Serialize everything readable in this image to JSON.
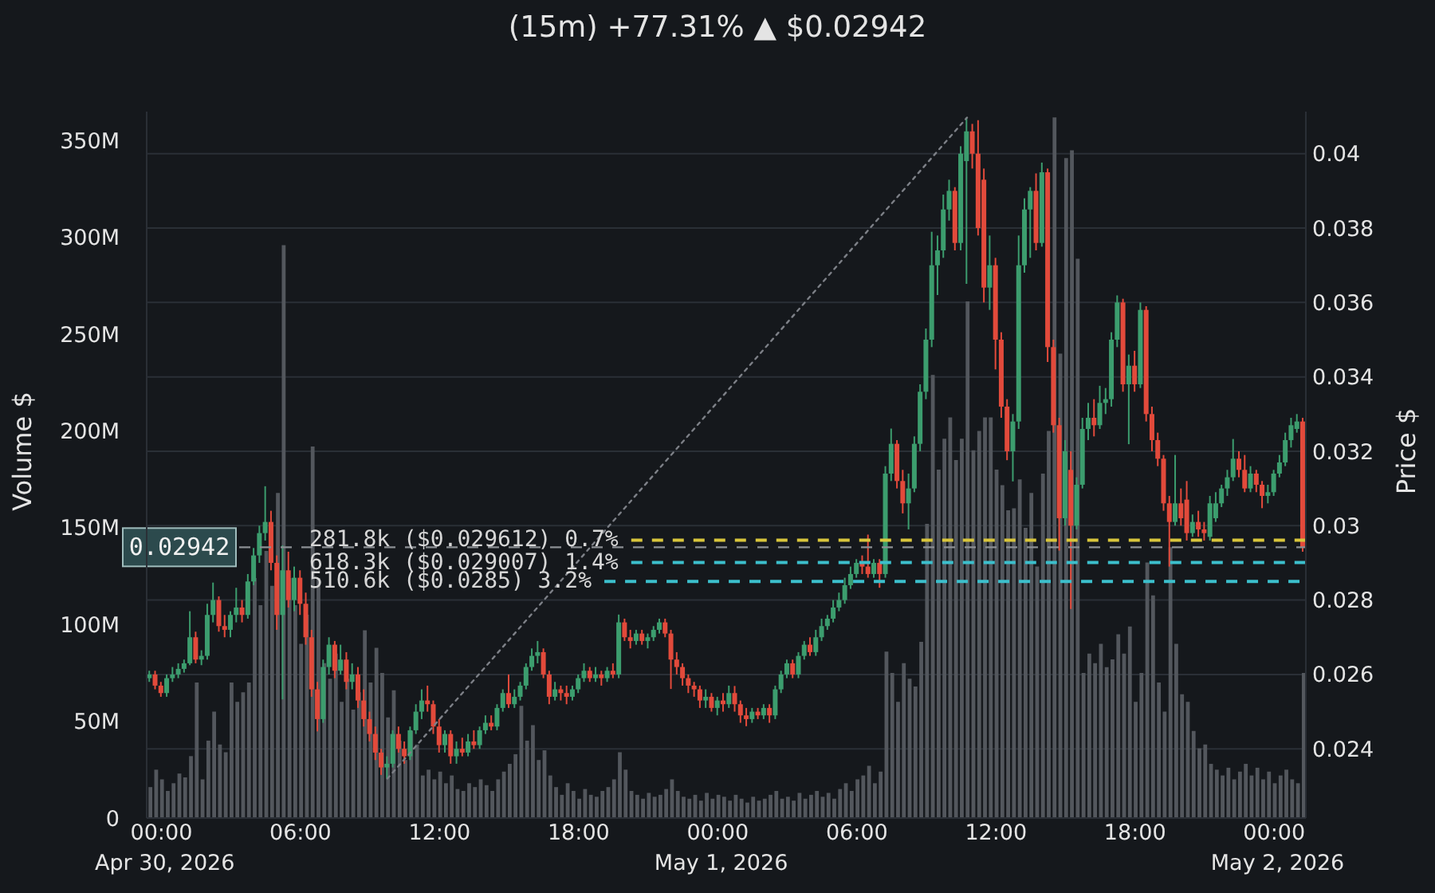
{
  "chart_data": {
    "type": "candlestick",
    "title": "(15m) +77.31% ▲ $0.02942",
    "ylabel": "Volume $",
    "y2label": "Price $",
    "x": [
      "2026-04-29T23:30",
      "2026-04-29T23:45",
      "2026-04-30T00:00",
      "2026-04-30T00:15",
      "2026-04-30T00:30",
      "2026-04-30T00:45",
      "2026-04-30T01:00",
      "2026-04-30T01:15",
      "2026-04-30T01:30",
      "2026-04-30T01:45",
      "2026-04-30T02:00",
      "2026-04-30T02:15",
      "2026-04-30T02:30",
      "2026-04-30T02:45",
      "2026-04-30T03:00",
      "2026-04-30T03:15",
      "2026-04-30T03:30",
      "2026-04-30T03:45",
      "2026-04-30T04:00",
      "2026-04-30T04:15",
      "2026-04-30T04:30",
      "2026-04-30T04:45",
      "2026-04-30T05:00",
      "2026-04-30T05:15",
      "2026-04-30T05:30",
      "2026-04-30T05:45",
      "2026-04-30T06:00",
      "2026-04-30T06:15",
      "2026-04-30T06:30",
      "2026-04-30T06:45",
      "2026-04-30T07:00",
      "2026-04-30T07:15",
      "2026-04-30T07:30",
      "2026-04-30T07:45",
      "2026-04-30T08:00",
      "2026-04-30T08:15",
      "2026-04-30T08:30",
      "2026-04-30T08:45",
      "2026-04-30T09:00",
      "2026-04-30T09:15",
      "2026-04-30T09:30",
      "2026-04-30T09:45",
      "2026-04-30T10:00",
      "2026-04-30T10:15",
      "2026-04-30T10:30",
      "2026-04-30T10:45",
      "2026-04-30T11:00",
      "2026-04-30T11:15",
      "2026-04-30T11:30",
      "2026-04-30T11:45",
      "2026-04-30T12:00",
      "2026-04-30T12:15",
      "2026-04-30T12:30",
      "2026-04-30T12:45",
      "2026-04-30T13:00",
      "2026-04-30T13:15",
      "2026-04-30T13:30",
      "2026-04-30T13:45",
      "2026-04-30T14:00",
      "2026-04-30T14:15",
      "2026-04-30T14:30",
      "2026-04-30T14:45",
      "2026-04-30T15:00",
      "2026-04-30T15:15",
      "2026-04-30T15:30",
      "2026-04-30T15:45",
      "2026-04-30T16:00",
      "2026-04-30T16:15",
      "2026-04-30T16:30",
      "2026-04-30T16:45",
      "2026-04-30T17:00",
      "2026-04-30T17:15",
      "2026-04-30T17:30",
      "2026-04-30T17:45",
      "2026-04-30T18:00",
      "2026-04-30T18:15",
      "2026-04-30T18:30",
      "2026-04-30T18:45",
      "2026-04-30T19:00",
      "2026-04-30T19:15",
      "2026-04-30T19:30",
      "2026-04-30T19:45",
      "2026-04-30T20:00",
      "2026-04-30T20:15",
      "2026-04-30T20:30",
      "2026-04-30T20:45",
      "2026-04-30T21:00",
      "2026-04-30T21:15",
      "2026-04-30T21:30",
      "2026-04-30T21:45",
      "2026-04-30T22:00",
      "2026-04-30T22:15",
      "2026-04-30T22:30",
      "2026-04-30T22:45",
      "2026-04-30T23:00",
      "2026-04-30T23:15",
      "2026-04-30T23:30",
      "2026-04-30T23:45",
      "2026-05-01T00:00",
      "2026-05-01T00:15",
      "2026-05-01T00:30",
      "2026-05-01T00:45",
      "2026-05-01T01:00",
      "2026-05-01T01:15",
      "2026-05-01T01:30",
      "2026-05-01T01:45",
      "2026-05-01T02:00",
      "2026-05-01T02:15",
      "2026-05-01T02:30",
      "2026-05-01T02:45",
      "2026-05-01T03:00",
      "2026-05-01T03:15",
      "2026-05-01T03:30",
      "2026-05-01T03:45",
      "2026-05-01T04:00",
      "2026-05-01T04:15",
      "2026-05-01T04:30",
      "2026-05-01T04:45",
      "2026-05-01T05:00",
      "2026-05-01T05:15",
      "2026-05-01T05:30",
      "2026-05-01T05:45",
      "2026-05-01T06:00",
      "2026-05-01T06:15",
      "2026-05-01T06:30",
      "2026-05-01T06:45",
      "2026-05-01T07:00",
      "2026-05-01T07:15",
      "2026-05-01T07:30",
      "2026-05-01T07:45",
      "2026-05-01T08:00",
      "2026-05-01T08:15",
      "2026-05-01T08:30",
      "2026-05-01T08:45",
      "2026-05-01T09:00",
      "2026-05-01T09:15",
      "2026-05-01T09:30",
      "2026-05-01T09:45",
      "2026-05-01T10:00",
      "2026-05-01T10:15",
      "2026-05-01T10:30",
      "2026-05-01T10:45",
      "2026-05-01T11:00",
      "2026-05-01T11:15",
      "2026-05-01T11:30",
      "2026-05-01T11:45",
      "2026-05-01T12:00",
      "2026-05-01T12:15",
      "2026-05-01T12:30",
      "2026-05-01T12:45",
      "2026-05-01T13:00",
      "2026-05-01T13:15",
      "2026-05-01T13:30",
      "2026-05-01T13:45",
      "2026-05-01T14:00",
      "2026-05-01T14:15",
      "2026-05-01T14:30",
      "2026-05-01T14:45",
      "2026-05-01T15:00",
      "2026-05-01T15:15",
      "2026-05-01T15:30",
      "2026-05-01T15:45",
      "2026-05-01T16:00",
      "2026-05-01T16:15",
      "2026-05-01T16:30",
      "2026-05-01T16:45",
      "2026-05-01T17:00",
      "2026-05-01T17:15",
      "2026-05-01T17:30",
      "2026-05-01T17:45",
      "2026-05-01T18:00",
      "2026-05-01T18:15",
      "2026-05-01T18:30",
      "2026-05-01T18:45",
      "2026-05-01T19:00",
      "2026-05-01T19:15",
      "2026-05-01T19:30",
      "2026-05-01T19:45",
      "2026-05-01T20:00",
      "2026-05-01T20:15",
      "2026-05-01T20:30",
      "2026-05-01T20:45",
      "2026-05-01T21:00",
      "2026-05-01T21:15",
      "2026-05-01T21:30",
      "2026-05-01T21:45",
      "2026-05-01T22:00",
      "2026-05-01T22:15",
      "2026-05-01T22:30",
      "2026-05-01T22:45",
      "2026-05-01T23:00",
      "2026-05-01T23:15",
      "2026-05-01T23:30",
      "2026-05-01T23:45",
      "2026-05-02T00:00",
      "2026-05-02T00:15",
      "2026-05-02T00:30",
      "2026-05-02T00:45",
      "2026-05-02T01:00",
      "2026-05-02T01:15"
    ],
    "series": [
      {
        "type": "bar",
        "color": "#53575d",
        "values": [
          16000000,
          25000000,
          20000000,
          14000000,
          18000000,
          23000000,
          21000000,
          32000000,
          70000000,
          20000000,
          40000000,
          55000000,
          38000000,
          34000000,
          70000000,
          60000000,
          65000000,
          70000000,
          124000000,
          110000000,
          138000000,
          120000000,
          168000000,
          296000000,
          124000000,
          110000000,
          90000000,
          105000000,
          192000000,
          124000000,
          80000000,
          72000000,
          85000000,
          60000000,
          72000000,
          56000000,
          65000000,
          97000000,
          70000000,
          88000000,
          75000000,
          52000000,
          66000000,
          40000000,
          30000000,
          45000000,
          38000000,
          22000000,
          25000000,
          20000000,
          24000000,
          18000000,
          22000000,
          15000000,
          14000000,
          18000000,
          16000000,
          20000000,
          17000000,
          14000000,
          20000000,
          24000000,
          28000000,
          33000000,
          58000000,
          40000000,
          48000000,
          30000000,
          35000000,
          22000000,
          16000000,
          12000000,
          18000000,
          14000000,
          10000000,
          15000000,
          12000000,
          11000000,
          14000000,
          16000000,
          20000000,
          34000000,
          25000000,
          14000000,
          12000000,
          10000000,
          13000000,
          11000000,
          12000000,
          15000000,
          20000000,
          14000000,
          11000000,
          10000000,
          12000000,
          9000000,
          13000000,
          10000000,
          12000000,
          11000000,
          9000000,
          12000000,
          10000000,
          8000000,
          11000000,
          9000000,
          10000000,
          12000000,
          14000000,
          10000000,
          11000000,
          9000000,
          13000000,
          10000000,
          12000000,
          14000000,
          11000000,
          13000000,
          10000000,
          15000000,
          18000000,
          14000000,
          20000000,
          22000000,
          27000000,
          18000000,
          24000000,
          86000000,
          75000000,
          60000000,
          80000000,
          72000000,
          68000000,
          91000000,
          152000000,
          229000000,
          180000000,
          196000000,
          207000000,
          185000000,
          196000000,
          267000000,
          190000000,
          200000000,
          207000000,
          207000000,
          180000000,
          172000000,
          159000000,
          160000000,
          175000000,
          150000000,
          168000000,
          130000000,
          178000000,
          200000000,
          362000000,
          240000000,
          341000000,
          345000000,
          289000000,
          75000000,
          85000000,
          80000000,
          90000000,
          78000000,
          82000000,
          95000000,
          85000000,
          99000000,
          60000000,
          75000000,
          132000000,
          115000000,
          70000000,
          55000000,
          140000000,
          90000000,
          64000000,
          60000000,
          45000000,
          36000000,
          38000000,
          28000000,
          25000000,
          22000000,
          26000000,
          20000000,
          24000000,
          28000000,
          22000000,
          26000000,
          20000000,
          24000000,
          18000000,
          22000000,
          25000000,
          20000000,
          18000000,
          75000000
        ]
      },
      {
        "axis": "y2",
        "ohlc": [
          [
            0.0259,
            0.0261,
            0.0258,
            0.026
          ],
          [
            0.026,
            0.0261,
            0.0256,
            0.0257
          ],
          [
            0.0257,
            0.0258,
            0.0254,
            0.0255
          ],
          [
            0.0255,
            0.026,
            0.0254,
            0.0259
          ],
          [
            0.0259,
            0.0262,
            0.0258,
            0.026
          ],
          [
            0.026,
            0.0263,
            0.0259,
            0.02615
          ],
          [
            0.02615,
            0.0264,
            0.02605,
            0.0263
          ],
          [
            0.0263,
            0.0277,
            0.02625,
            0.027
          ],
          [
            0.027,
            0.02715,
            0.0263,
            0.0264
          ],
          [
            0.0264,
            0.02665,
            0.02625,
            0.0265
          ],
          [
            0.0265,
            0.0279,
            0.0264,
            0.0276
          ],
          [
            0.0276,
            0.02847,
            0.0274,
            0.028
          ],
          [
            0.028,
            0.0281,
            0.02715,
            0.0273
          ],
          [
            0.0273,
            0.0276,
            0.027,
            0.0272
          ],
          [
            0.0272,
            0.0277,
            0.027,
            0.0276
          ],
          [
            0.0276,
            0.02833,
            0.0274,
            0.0278
          ],
          [
            0.0278,
            0.028,
            0.0274,
            0.0276
          ],
          [
            0.0276,
            0.0287,
            0.0275,
            0.0285
          ],
          [
            0.0285,
            0.0294,
            0.0284,
            0.0292
          ],
          [
            0.0292,
            0.03,
            0.029,
            0.0298
          ],
          [
            0.0298,
            0.03106,
            0.0296,
            0.0301
          ],
          [
            0.0301,
            0.0304,
            0.0288,
            0.029
          ],
          [
            0.029,
            0.0292,
            0.0272,
            0.0276
          ],
          [
            0.0276,
            0.02947,
            0.02533,
            0.0288
          ],
          [
            0.0288,
            0.0293,
            0.0278,
            0.028
          ],
          [
            0.028,
            0.0289,
            0.0277,
            0.0286
          ],
          [
            0.0286,
            0.0288,
            0.0276,
            0.0279
          ],
          [
            0.0279,
            0.0282,
            0.0268,
            0.027
          ],
          [
            0.027,
            0.0272,
            0.0254,
            0.0256
          ],
          [
            0.0256,
            0.0258,
            0.02447,
            0.0248
          ],
          [
            0.0248,
            0.0264,
            0.0247,
            0.0262
          ],
          [
            0.0262,
            0.027,
            0.026,
            0.0268
          ],
          [
            0.0268,
            0.0269,
            0.0259,
            0.0261
          ],
          [
            0.0261,
            0.0268,
            0.026,
            0.0264
          ],
          [
            0.0264,
            0.0266,
            0.0256,
            0.0258
          ],
          [
            0.0258,
            0.0263,
            0.0256,
            0.026
          ],
          [
            0.026,
            0.0262,
            0.0251,
            0.0253
          ],
          [
            0.0253,
            0.0256,
            0.0246,
            0.0248
          ],
          [
            0.0248,
            0.025,
            0.0242,
            0.0244
          ],
          [
            0.0244,
            0.0246,
            0.0237,
            0.0239
          ],
          [
            0.0239,
            0.024,
            0.0233,
            0.0235
          ],
          [
            0.0235,
            0.0238,
            0.0232,
            0.0236
          ],
          [
            0.0236,
            0.0245,
            0.0235,
            0.0244
          ],
          [
            0.0244,
            0.0246,
            0.0239,
            0.024
          ],
          [
            0.024,
            0.0242,
            0.0236,
            0.0238
          ],
          [
            0.0238,
            0.0246,
            0.0237,
            0.0245
          ],
          [
            0.0245,
            0.0252,
            0.0244,
            0.025
          ],
          [
            0.025,
            0.0256,
            0.0248,
            0.0253
          ],
          [
            0.0253,
            0.0257,
            0.025,
            0.0252
          ],
          [
            0.0252,
            0.0253,
            0.0244,
            0.0246
          ],
          [
            0.0246,
            0.0248,
            0.0239,
            0.0241
          ],
          [
            0.0241,
            0.0245,
            0.0239,
            0.0244
          ],
          [
            0.0244,
            0.0245,
            0.0236,
            0.0238
          ],
          [
            0.0238,
            0.0242,
            0.0236,
            0.024
          ],
          [
            0.024,
            0.0243,
            0.0238,
            0.0239
          ],
          [
            0.0239,
            0.0244,
            0.0238,
            0.0242
          ],
          [
            0.0242,
            0.0245,
            0.024,
            0.0241
          ],
          [
            0.0241,
            0.0246,
            0.024,
            0.0245
          ],
          [
            0.0245,
            0.0249,
            0.0244,
            0.0247
          ],
          [
            0.0247,
            0.0249,
            0.0245,
            0.0246
          ],
          [
            0.0246,
            0.0252,
            0.0245,
            0.0251
          ],
          [
            0.0251,
            0.0256,
            0.025,
            0.0255
          ],
          [
            0.0255,
            0.026,
            0.0251,
            0.0252
          ],
          [
            0.0252,
            0.0256,
            0.0251,
            0.0254
          ],
          [
            0.0254,
            0.0258,
            0.0253,
            0.0257
          ],
          [
            0.0257,
            0.0263,
            0.0256,
            0.0262
          ],
          [
            0.0262,
            0.0267,
            0.0261,
            0.0265
          ],
          [
            0.0265,
            0.0269,
            0.0263,
            0.0266
          ],
          [
            0.0266,
            0.0267,
            0.0259,
            0.026
          ],
          [
            0.026,
            0.0261,
            0.0252,
            0.0254
          ],
          [
            0.0254,
            0.0258,
            0.0253,
            0.0256
          ],
          [
            0.0256,
            0.0257,
            0.0253,
            0.0255
          ],
          [
            0.0255,
            0.0257,
            0.0252,
            0.0254
          ],
          [
            0.0254,
            0.0257,
            0.0253,
            0.0256
          ],
          [
            0.0256,
            0.026,
            0.0255,
            0.0259
          ],
          [
            0.0259,
            0.0263,
            0.0258,
            0.0261
          ],
          [
            0.0261,
            0.0262,
            0.0258,
            0.0259
          ],
          [
            0.0259,
            0.0262,
            0.0258,
            0.026
          ],
          [
            0.026,
            0.0261,
            0.0257,
            0.0259
          ],
          [
            0.0259,
            0.0262,
            0.0258,
            0.0261
          ],
          [
            0.0261,
            0.0263,
            0.0259,
            0.026
          ],
          [
            0.026,
            0.02761,
            0.0259,
            0.0274
          ],
          [
            0.0274,
            0.0275,
            0.0269,
            0.027
          ],
          [
            0.027,
            0.0272,
            0.0267,
            0.0269
          ],
          [
            0.0269,
            0.0272,
            0.0268,
            0.0271
          ],
          [
            0.0271,
            0.0272,
            0.0268,
            0.0269
          ],
          [
            0.0269,
            0.0271,
            0.0267,
            0.027
          ],
          [
            0.027,
            0.0273,
            0.0269,
            0.0272
          ],
          [
            0.0272,
            0.0275,
            0.0271,
            0.0274
          ],
          [
            0.0274,
            0.0275,
            0.027,
            0.0271
          ],
          [
            0.0271,
            0.0272,
            0.02561,
            0.0264
          ],
          [
            0.0264,
            0.0266,
            0.026,
            0.0262
          ],
          [
            0.0262,
            0.0263,
            0.0257,
            0.0259
          ],
          [
            0.0259,
            0.026,
            0.0255,
            0.0257
          ],
          [
            0.0257,
            0.0258,
            0.0254,
            0.0256
          ],
          [
            0.0256,
            0.0257,
            0.0251,
            0.0253
          ],
          [
            0.0253,
            0.0256,
            0.0251,
            0.0254
          ],
          [
            0.0254,
            0.0255,
            0.025,
            0.0251
          ],
          [
            0.0251,
            0.0254,
            0.0249,
            0.0253
          ],
          [
            0.0253,
            0.0255,
            0.025,
            0.0252
          ],
          [
            0.0252,
            0.0257,
            0.0251,
            0.0255
          ],
          [
            0.0255,
            0.02569,
            0.025,
            0.0252
          ],
          [
            0.0252,
            0.0253,
            0.0247,
            0.0249
          ],
          [
            0.0249,
            0.0251,
            0.02461,
            0.0248
          ],
          [
            0.0248,
            0.0251,
            0.0247,
            0.025
          ],
          [
            0.025,
            0.0251,
            0.0248,
            0.0249
          ],
          [
            0.0249,
            0.0252,
            0.0248,
            0.0251
          ],
          [
            0.0251,
            0.0252,
            0.0247,
            0.0249
          ],
          [
            0.0249,
            0.0257,
            0.0248,
            0.0256
          ],
          [
            0.0256,
            0.0261,
            0.0255,
            0.026
          ],
          [
            0.026,
            0.0264,
            0.0259,
            0.0263
          ],
          [
            0.0263,
            0.0264,
            0.0259,
            0.026
          ],
          [
            0.026,
            0.0266,
            0.0259,
            0.0265
          ],
          [
            0.0265,
            0.0269,
            0.0264,
            0.0268
          ],
          [
            0.0268,
            0.027,
            0.0265,
            0.0266
          ],
          [
            0.0266,
            0.0272,
            0.0265,
            0.027
          ],
          [
            0.027,
            0.0275,
            0.0269,
            0.0273
          ],
          [
            0.0273,
            0.0276,
            0.0272,
            0.0275
          ],
          [
            0.0275,
            0.028,
            0.0274,
            0.0278
          ],
          [
            0.0278,
            0.0282,
            0.0277,
            0.028
          ],
          [
            0.028,
            0.0286,
            0.0279,
            0.0284
          ],
          [
            0.0284,
            0.0289,
            0.0283,
            0.0287
          ],
          [
            0.0287,
            0.0291,
            0.0286,
            0.029
          ],
          [
            0.029,
            0.0292,
            0.0287,
            0.0289
          ],
          [
            0.0289,
            0.02976,
            0.0286,
            0.0287
          ],
          [
            0.0287,
            0.0291,
            0.0286,
            0.029
          ],
          [
            0.029,
            0.0291,
            0.02833,
            0.0287
          ],
          [
            0.0287,
            0.0316,
            0.0286,
            0.0314
          ],
          [
            0.0314,
            0.03261,
            0.0312,
            0.0322
          ],
          [
            0.0322,
            0.0323,
            0.031,
            0.0312
          ],
          [
            0.0312,
            0.0315,
            0.03033,
            0.0306
          ],
          [
            0.0306,
            0.0314,
            0.0299,
            0.031
          ],
          [
            0.031,
            0.0324,
            0.0309,
            0.0322
          ],
          [
            0.0322,
            0.0338,
            0.032,
            0.0336
          ],
          [
            0.0336,
            0.0353,
            0.0334,
            0.035
          ],
          [
            0.035,
            0.0379,
            0.0348,
            0.037
          ],
          [
            0.037,
            0.0378,
            0.0362,
            0.0374
          ],
          [
            0.0374,
            0.0389,
            0.0372,
            0.0385
          ],
          [
            0.0385,
            0.0393,
            0.0382,
            0.039
          ],
          [
            0.039,
            0.0391,
            0.0374,
            0.0376
          ],
          [
            0.0376,
            0.0402,
            0.0374,
            0.04
          ],
          [
            0.0398,
            0.04097,
            0.0365,
            0.0406
          ],
          [
            0.0406,
            0.0408,
            0.0396,
            0.04
          ],
          [
            0.04,
            0.0409,
            0.0378,
            0.038
          ],
          [
            0.0393,
            0.0396,
            0.036,
            0.0364
          ],
          [
            0.0364,
            0.0378,
            0.0358,
            0.037
          ],
          [
            0.037,
            0.0372,
            0.0342,
            0.035
          ],
          [
            0.035,
            0.0352,
            0.0329,
            0.0332
          ],
          [
            0.0332,
            0.0334,
            0.03176,
            0.032
          ],
          [
            0.032,
            0.033,
            0.03119,
            0.0328
          ],
          [
            0.0328,
            0.0378,
            0.0326,
            0.037
          ],
          [
            0.037,
            0.0388,
            0.0368,
            0.0385
          ],
          [
            0.0385,
            0.0391,
            0.0372,
            0.039
          ],
          [
            0.039,
            0.03947,
            0.0374,
            0.0376
          ],
          [
            0.0376,
            0.03976,
            0.0375,
            0.0395
          ],
          [
            0.0395,
            0.0396,
            0.0344,
            0.0348
          ],
          [
            0.0348,
            0.035,
            0.0325,
            0.0327
          ],
          [
            0.0327,
            0.0329,
            0.02933,
            0.0302
          ],
          [
            0.0302,
            0.0323,
            0.03,
            0.032
          ],
          [
            0.0315,
            0.032,
            0.02776,
            0.03
          ],
          [
            0.03,
            0.0313,
            0.0299,
            0.0311
          ],
          [
            0.0311,
            0.0329,
            0.031,
            0.0326
          ],
          [
            0.0326,
            0.0333,
            0.0323,
            0.0329
          ],
          [
            0.0329,
            0.0334,
            0.0324,
            0.0327
          ],
          [
            0.0327,
            0.03376,
            0.0326,
            0.0333
          ],
          [
            0.0333,
            0.0337,
            0.033,
            0.0334
          ],
          [
            0.0334,
            0.0352,
            0.0332,
            0.035
          ],
          [
            0.035,
            0.03619,
            0.0348,
            0.036
          ],
          [
            0.036,
            0.0361,
            0.0336,
            0.0338
          ],
          [
            0.0338,
            0.0346,
            0.03219,
            0.0343
          ],
          [
            0.0343,
            0.0347,
            0.0336,
            0.0338
          ],
          [
            0.0338,
            0.036,
            0.0337,
            0.0358
          ],
          [
            0.0358,
            0.0359,
            0.0328,
            0.033
          ],
          [
            0.033,
            0.0332,
            0.032,
            0.0323
          ],
          [
            0.0323,
            0.0325,
            0.0316,
            0.0318
          ],
          [
            0.0318,
            0.0319,
            0.0304,
            0.0306
          ],
          [
            0.0306,
            0.0308,
            0.0289,
            0.0301
          ],
          [
            0.0301,
            0.0319,
            0.03,
            0.0306
          ],
          [
            0.0306,
            0.031,
            0.03,
            0.0302
          ],
          [
            0.0307,
            0.0312,
            0.0296,
            0.0298
          ],
          [
            0.0298,
            0.0303,
            0.0297,
            0.0301
          ],
          [
            0.0301,
            0.0304,
            0.0297,
            0.0299
          ],
          [
            0.0299,
            0.0301,
            0.0296,
            0.0298
          ],
          [
            0.0297,
            0.0308,
            0.0296,
            0.0306
          ],
          [
            0.0302,
            0.0309,
            0.0301,
            0.0306
          ],
          [
            0.0306,
            0.0311,
            0.0305,
            0.031
          ],
          [
            0.031,
            0.0315,
            0.0308,
            0.0313
          ],
          [
            0.0313,
            0.03233,
            0.0312,
            0.0318
          ],
          [
            0.0318,
            0.032,
            0.0313,
            0.0315
          ],
          [
            0.0315,
            0.0319,
            0.0309,
            0.031
          ],
          [
            0.031,
            0.0316,
            0.0309,
            0.0314
          ],
          [
            0.0314,
            0.0315,
            0.0309,
            0.0311
          ],
          [
            0.0311,
            0.0312,
            0.03047,
            0.0308
          ],
          [
            0.0308,
            0.0311,
            0.0306,
            0.0309
          ],
          [
            0.0309,
            0.0315,
            0.0308,
            0.0314
          ],
          [
            0.0314,
            0.0319,
            0.0313,
            0.0317
          ],
          [
            0.0317,
            0.0325,
            0.0316,
            0.0323
          ],
          [
            0.0323,
            0.0329,
            0.0321,
            0.0327
          ],
          [
            0.0326,
            0.033,
            0.0325,
            0.0328
          ],
          [
            0.0328,
            0.0329,
            0.0293,
            0.02942
          ]
        ],
        "colors": [
          "#3c9d6e",
          "#e24a3b",
          "#e24a3b",
          "#3c9d6e",
          "#3c9d6e",
          "#3c9d6e",
          "#3c9d6e",
          "#3c9d6e",
          "#e24a3b",
          "#3c9d6e",
          "#3c9d6e",
          "#3c9d6e",
          "#e24a3b",
          "#e24a3b",
          "#3c9d6e",
          "#3c9d6e",
          "#e24a3b",
          "#3c9d6e",
          "#3c9d6e",
          "#3c9d6e",
          "#3c9d6e",
          "#e24a3b",
          "#e24a3b",
          "#3c9d6e",
          "#e24a3b",
          "#3c9d6e",
          "#e24a3b",
          "#e24a3b",
          "#e24a3b",
          "#e24a3b",
          "#3c9d6e",
          "#3c9d6e",
          "#e24a3b",
          "#3c9d6e",
          "#e24a3b",
          "#3c9d6e",
          "#e24a3b",
          "#e24a3b",
          "#e24a3b",
          "#e24a3b",
          "#e24a3b",
          "#3c9d6e",
          "#3c9d6e",
          "#e24a3b",
          "#e24a3b",
          "#3c9d6e",
          "#3c9d6e",
          "#3c9d6e",
          "#e24a3b",
          "#e24a3b",
          "#e24a3b",
          "#3c9d6e",
          "#e24a3b",
          "#3c9d6e",
          "#e24a3b",
          "#3c9d6e",
          "#e24a3b",
          "#3c9d6e",
          "#3c9d6e",
          "#e24a3b",
          "#3c9d6e",
          "#3c9d6e",
          "#e24a3b",
          "#3c9d6e",
          "#3c9d6e",
          "#3c9d6e",
          "#3c9d6e",
          "#3c9d6e",
          "#e24a3b",
          "#e24a3b",
          "#3c9d6e",
          "#e24a3b",
          "#e24a3b",
          "#3c9d6e",
          "#3c9d6e",
          "#3c9d6e",
          "#e24a3b",
          "#3c9d6e",
          "#e24a3b",
          "#3c9d6e",
          "#e24a3b",
          "#3c9d6e",
          "#e24a3b",
          "#e24a3b",
          "#3c9d6e",
          "#e24a3b",
          "#3c9d6e",
          "#3c9d6e",
          "#3c9d6e",
          "#e24a3b",
          "#e24a3b",
          "#e24a3b",
          "#e24a3b",
          "#e24a3b",
          "#e24a3b",
          "#e24a3b",
          "#3c9d6e",
          "#e24a3b",
          "#3c9d6e",
          "#e24a3b",
          "#3c9d6e",
          "#e24a3b",
          "#e24a3b",
          "#e24a3b",
          "#3c9d6e",
          "#e24a3b",
          "#3c9d6e",
          "#e24a3b",
          "#3c9d6e",
          "#3c9d6e",
          "#3c9d6e",
          "#e24a3b",
          "#3c9d6e",
          "#3c9d6e",
          "#e24a3b",
          "#3c9d6e",
          "#3c9d6e",
          "#3c9d6e",
          "#3c9d6e",
          "#3c9d6e",
          "#3c9d6e",
          "#3c9d6e",
          "#3c9d6e",
          "#e24a3b",
          "#e24a3b",
          "#3c9d6e",
          "#e24a3b",
          "#3c9d6e",
          "#3c9d6e",
          "#e24a3b",
          "#e24a3b",
          "#3c9d6e",
          "#3c9d6e",
          "#3c9d6e",
          "#3c9d6e",
          "#3c9d6e",
          "#3c9d6e",
          "#3c9d6e",
          "#3c9d6e",
          "#e24a3b",
          "#3c9d6e",
          "#3c9d6e",
          "#e24a3b",
          "#e24a3b",
          "#e24a3b",
          "#3c9d6e",
          "#e24a3b",
          "#e24a3b",
          "#e24a3b",
          "#3c9d6e",
          "#3c9d6e",
          "#3c9d6e",
          "#3c9d6e",
          "#e24a3b",
          "#3c9d6e",
          "#e24a3b",
          "#e24a3b",
          "#e24a3b",
          "#3c9d6e",
          "#e24a3b",
          "#3c9d6e",
          "#3c9d6e",
          "#3c9d6e",
          "#e24a3b",
          "#3c9d6e",
          "#3c9d6e",
          "#3c9d6e",
          "#3c9d6e",
          "#e24a3b",
          "#3c9d6e",
          "#e24a3b",
          "#3c9d6e",
          "#e24a3b",
          "#e24a3b",
          "#e24a3b",
          "#e24a3b",
          "#e24a3b",
          "#3c9d6e",
          "#e24a3b",
          "#e24a3b",
          "#3c9d6e",
          "#e24a3b",
          "#e24a3b",
          "#3c9d6e",
          "#3c9d6e",
          "#3c9d6e",
          "#3c9d6e",
          "#3c9d6e",
          "#e24a3b",
          "#e24a3b",
          "#3c9d6e",
          "#e24a3b",
          "#e24a3b",
          "#3c9d6e",
          "#3c9d6e",
          "#3c9d6e",
          "#3c9d6e",
          "#3c9d6e",
          "#3c9d6e",
          "#e24a3b"
        ]
      },
      {
        "type": "line",
        "axis": "y2",
        "color": "#7d8087",
        "line_style": "dotted",
        "x": [
          "2026-04-30T09:45",
          "2026-05-01T10:45"
        ],
        "values": [
          0.0232,
          0.04097
        ]
      }
    ],
    "xlim": [
      "2026-04-29T23:22",
      "2026-05-02T01:22"
    ],
    "xticks": [
      {
        "value": "2026-04-30T00:00",
        "label": "00:00\nApr 30, 2026"
      },
      {
        "value": "2026-04-30T06:00",
        "label": "06:00"
      },
      {
        "value": "2026-04-30T12:00",
        "label": "12:00"
      },
      {
        "value": "2026-04-30T18:00",
        "label": "18:00"
      },
      {
        "value": "2026-05-01T00:00",
        "label": "00:00\nMay 1, 2026"
      },
      {
        "value": "2026-05-01T06:00",
        "label": "06:00"
      },
      {
        "value": "2026-05-01T12:00",
        "label": "12:00"
      },
      {
        "value": "2026-05-01T18:00",
        "label": "18:00"
      },
      {
        "value": "2026-05-02T00:00",
        "label": "00:00\nMay 2, 2026"
      }
    ],
    "ylim": [
      0,
      365000000
    ],
    "yticks": [
      0,
      {
        "value": 50000000,
        "label": "50M"
      },
      {
        "value": 100000000,
        "label": "100M"
      },
      {
        "value": 150000000,
        "label": "150M"
      },
      {
        "value": 200000000,
        "label": "200M"
      },
      {
        "value": 250000000,
        "label": "250M"
      },
      {
        "value": 300000000,
        "label": "300M"
      },
      {
        "value": 350000000,
        "label": "350M"
      }
    ],
    "y2lim": [
      0.02214,
      0.04113
    ],
    "y2ticks": [
      0.024,
      0.026,
      0.028,
      0.03,
      0.032,
      0.034,
      0.036,
      0.038,
      0.04
    ],
    "grid": "y2",
    "ref_lines": [
      {
        "axis": "y2",
        "value": 0.02942,
        "label": "0.02942",
        "color": "#8c8f94",
        "line_style": "dashed"
      },
      {
        "axis": "y2",
        "value": 0.029612,
        "label": "281.8k ($0.029612) 0.7%",
        "color": "#d8c53c",
        "line_style": "dashed"
      },
      {
        "axis": "y2",
        "value": 0.029007,
        "label": "618.3k ($0.029007) 1.4%",
        "color": "#3cbfcc",
        "line_style": "dashed"
      },
      {
        "axis": "y2",
        "value": 0.0285,
        "label": "510.6k ($0.0285) 3.2%",
        "color": "#3cbfcc",
        "line_style": "dashed"
      }
    ]
  }
}
